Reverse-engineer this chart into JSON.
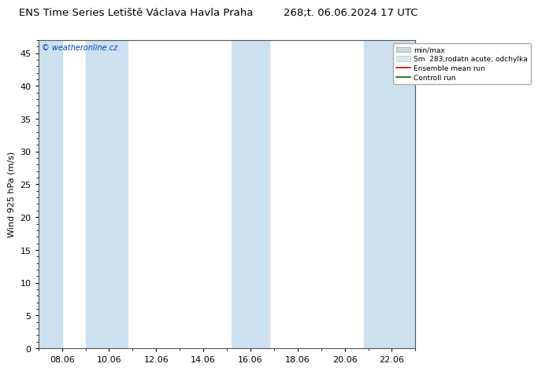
{
  "title_left": "ENS Time Series Letiště Václava Havla Praha",
  "title_right": "268;t. 06.06.2024 17 UTC",
  "ylabel": "Wind 925 hPa (m/s)",
  "watermark": "© weatheronline.cz",
  "ylim": [
    0,
    47
  ],
  "yticks": [
    0,
    5,
    10,
    15,
    20,
    25,
    30,
    35,
    40,
    45
  ],
  "xtick_labels": [
    "08.06",
    "10.06",
    "12.06",
    "14.06",
    "16.06",
    "18.06",
    "20.06",
    "22.06"
  ],
  "xtick_positions": [
    2,
    4,
    6,
    8,
    10,
    12,
    14,
    16
  ],
  "xmin": 1,
  "xmax": 17,
  "blue_bands": [
    [
      1.0,
      2.0
    ],
    [
      3.0,
      4.8
    ],
    [
      9.2,
      10.8
    ],
    [
      14.8,
      16.0
    ],
    [
      16.0,
      17.0
    ]
  ],
  "band_color": "#cce0f0",
  "legend_labels": [
    "min/max",
    "Sm  283;rodatn acute; odchylka",
    "Ensemble mean run",
    "Controll run"
  ],
  "minmax_color": "#c8dce8",
  "sm_color": "#d8e8f0",
  "ensemble_color": "#dd0000",
  "control_color": "#006600",
  "bg_color": "#ffffff",
  "plot_bg": "#ffffff",
  "title_fontsize": 9.5,
  "axis_fontsize": 8,
  "tick_fontsize": 8
}
